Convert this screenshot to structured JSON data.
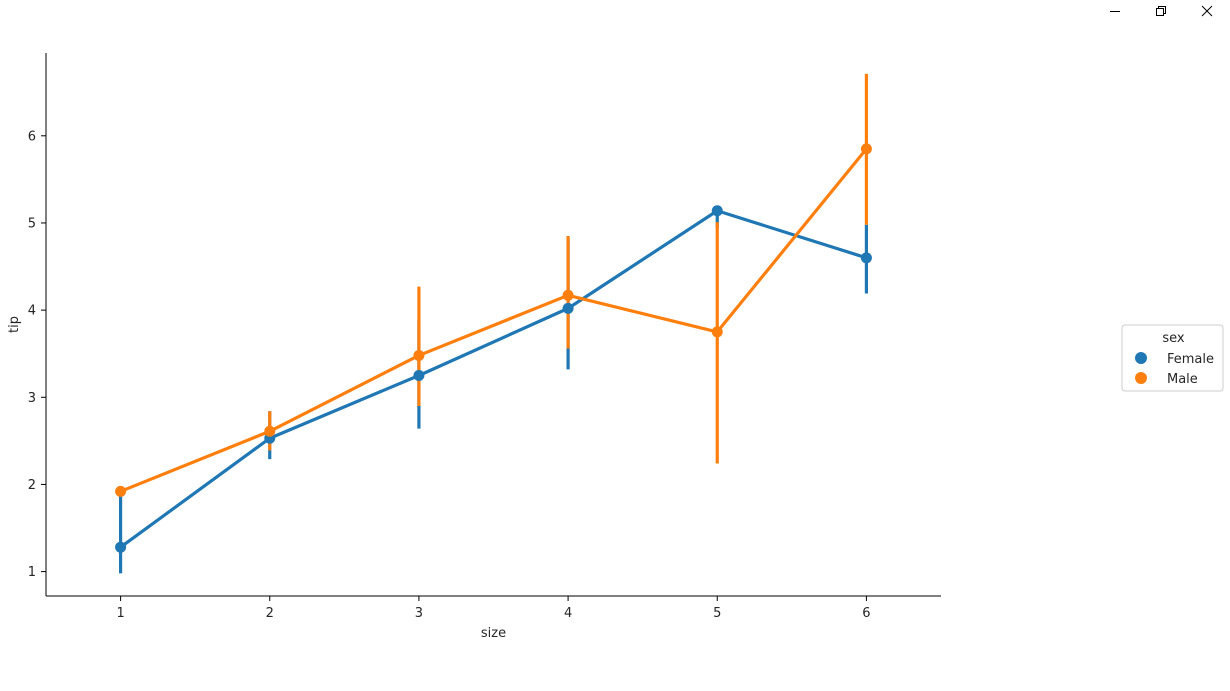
{
  "window": {
    "controls": {
      "minimize": "minimize-icon",
      "restore": "restore-icon",
      "close": "close-icon"
    }
  },
  "chart_data": {
    "type": "line",
    "x": [
      1,
      2,
      3,
      4,
      5,
      6
    ],
    "xticks": [
      "1",
      "2",
      "3",
      "4",
      "5",
      "6"
    ],
    "yticks": [
      "1",
      "2",
      "3",
      "4",
      "5",
      "6"
    ],
    "xlabel": "size",
    "ylabel": "tip",
    "ylim": [
      0.72,
      6.95
    ],
    "xlim": [
      0.5,
      6.5
    ],
    "grid": false,
    "legend": {
      "title": "sex",
      "placement": "center-right"
    },
    "series": [
      {
        "name": "Female",
        "color": "#1f77b4",
        "values": [
          1.28,
          2.53,
          3.25,
          4.02,
          5.14,
          4.6
        ],
        "ci": [
          [
            0.98,
            1.88
          ],
          [
            2.29,
            2.84
          ],
          [
            2.64,
            3.88
          ],
          [
            3.32,
            4.82
          ],
          [
            4.94,
            5.14
          ],
          [
            4.19,
            4.98
          ]
        ]
      },
      {
        "name": "Male",
        "color": "#ff7f0e",
        "values": [
          1.92,
          2.61,
          3.48,
          4.17,
          3.75,
          5.85
        ],
        "ci": [
          [
            1.92,
            1.92
          ],
          [
            2.39,
            2.84
          ],
          [
            2.9,
            4.27
          ],
          [
            3.56,
            4.85
          ],
          [
            2.24,
            5.01
          ],
          [
            4.98,
            6.71
          ]
        ]
      }
    ]
  }
}
